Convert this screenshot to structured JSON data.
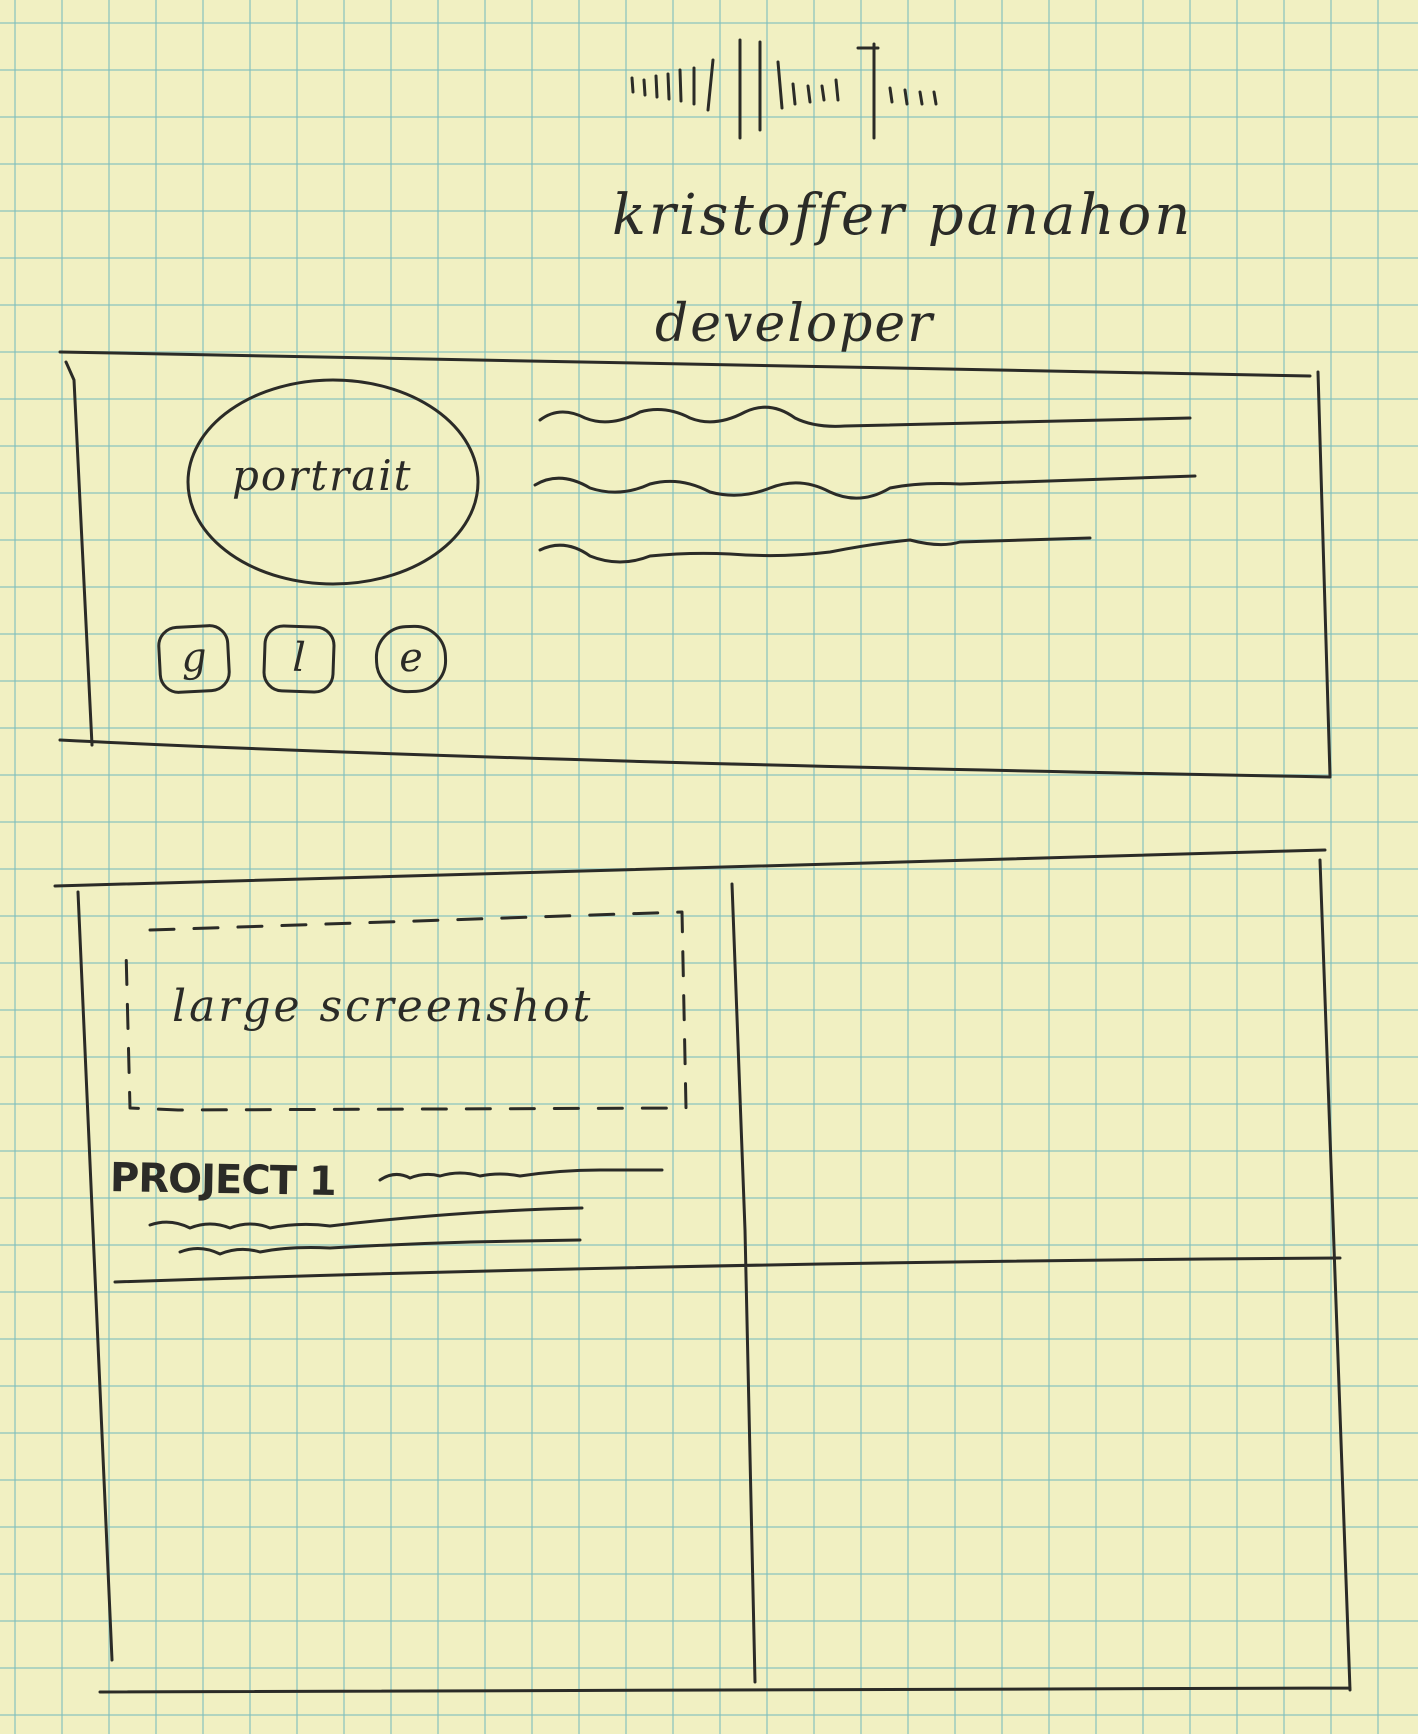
{
  "header": {
    "name": "kristoffer panahon",
    "role": "developer"
  },
  "profile": {
    "portrait_label": "portrait",
    "social_links": [
      {
        "label": "g"
      },
      {
        "label": "l"
      },
      {
        "label": "e"
      }
    ]
  },
  "projects": {
    "screenshot_label": "large screenshot",
    "items": [
      {
        "title": "PROJECT 1"
      }
    ]
  },
  "colors": {
    "paper": "#f1f0c2",
    "grid": "#7cbebe",
    "ink": "#2b2b27"
  }
}
